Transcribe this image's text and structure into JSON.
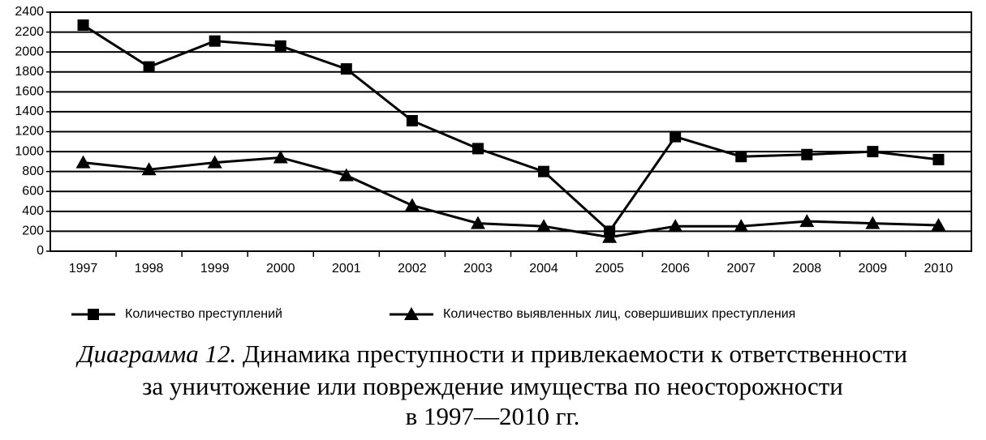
{
  "chart_data": {
    "type": "line",
    "caption_label": "Диаграмма 12.",
    "title_lines": [
      "Динамика преступности и привлекаемости к ответственности",
      "за уничтожение или повреждение имущества по неосторожности",
      "в 1997—2010 гг."
    ],
    "categories": [
      "1997",
      "1998",
      "1999",
      "2000",
      "2001",
      "2002",
      "2003",
      "2004",
      "2005",
      "2006",
      "2007",
      "2008",
      "2009",
      "2010"
    ],
    "series": [
      {
        "name": "Количество преступлений",
        "color": "#000000",
        "marker": "square",
        "values": [
          2270,
          1850,
          2110,
          2060,
          1830,
          1310,
          1030,
          800,
          200,
          1150,
          950,
          970,
          1000,
          920
        ]
      },
      {
        "name": "Количество выявленных лиц, совершивших преступления",
        "color": "#000000",
        "marker": "triangle",
        "values": [
          890,
          820,
          890,
          940,
          760,
          460,
          280,
          250,
          140,
          250,
          250,
          300,
          280,
          260
        ]
      }
    ],
    "ylim": [
      0,
      2400
    ],
    "yticks": [
      0,
      200,
      400,
      600,
      800,
      1000,
      1200,
      1400,
      1600,
      1800,
      2000,
      2200,
      2400
    ],
    "grid": true,
    "legend": "bottom"
  }
}
